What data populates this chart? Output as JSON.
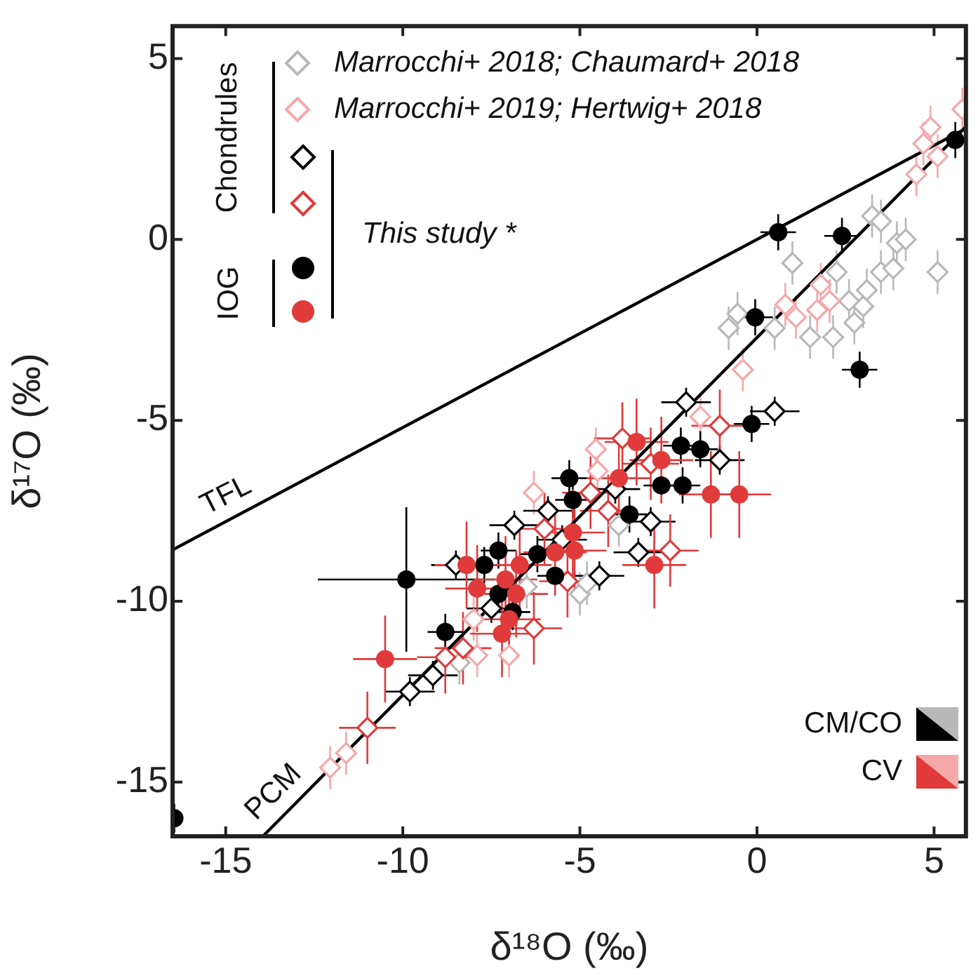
{
  "chart_data": {
    "type": "scatter",
    "xlabel": "δ¹⁸O (‰)",
    "ylabel": "δ¹⁷O (‰)",
    "xlim": [
      -16.5,
      5.9
    ],
    "ylim": [
      -16.5,
      5.9
    ],
    "xticks": [
      -15,
      -10,
      -5,
      0,
      5
    ],
    "yticks": [
      -15,
      -10,
      -5,
      0,
      5
    ],
    "grid": false,
    "legend": "top left",
    "annotations": [
      "Chondrules",
      "IOG",
      "This study *",
      "CM/CO",
      "CV",
      {
        "text": "TFL",
        "x": -14.7,
        "y": -7.64
      },
      {
        "text": "PCM",
        "x": -13.2,
        "y": -15.73
      }
    ],
    "series": [
      {
        "name": "Marrocchi+ 2018; Chaumard+ 2018",
        "color": "#b8b8b8",
        "marker": "diamond",
        "x": [
          3.25,
          3.5,
          1.0,
          3.95,
          4.2,
          3.5,
          3.85,
          5.1,
          -0.55,
          -0.8,
          0.5,
          1.5,
          2.15,
          2.75,
          3.0,
          2.6,
          2.25,
          3.1,
          -5.0,
          -4.8,
          -6.5,
          -8.4,
          -3.9
        ],
        "values": [
          0.65,
          0.5,
          -0.65,
          -0.1,
          0.0,
          -0.9,
          -0.8,
          -0.9,
          -2.05,
          -2.45,
          -2.45,
          -2.7,
          -2.7,
          -2.3,
          -1.85,
          -1.7,
          -0.9,
          -1.4,
          -9.8,
          -9.5,
          -9.6,
          -11.7,
          -7.9
        ],
        "errors": [
          0.6,
          0.6,
          0.6,
          0.6,
          0.6,
          0.6,
          0.6,
          0.6,
          0.6,
          0.6,
          0.6,
          0.6,
          0.6,
          0.6,
          0.6,
          0.6,
          0.6,
          0.6,
          0.6,
          0.6,
          0.6,
          0.6,
          0.6
        ]
      },
      {
        "name": "Marrocchi+ 2019; Hertwig+ 2018",
        "color": "#f5a8a8",
        "marker": "diamond",
        "x": [
          5.8,
          4.9,
          4.7,
          5.1,
          4.5,
          1.8,
          2.05,
          1.7,
          1.1,
          0.8,
          -0.4,
          -4.55,
          -1.6,
          -12.05,
          -11.6,
          -8.0,
          -7.9,
          -7.0,
          -6.3,
          -4.5
        ],
        "values": [
          3.6,
          3.1,
          2.65,
          2.3,
          1.8,
          -1.25,
          -1.7,
          -1.95,
          -2.15,
          -1.8,
          -3.6,
          -5.8,
          -4.9,
          -14.6,
          -14.2,
          -10.5,
          -11.5,
          -11.5,
          -7.0,
          -6.4
        ],
        "errors": [
          0.6,
          0.6,
          0.6,
          0.6,
          0.6,
          0.6,
          0.6,
          0.6,
          0.6,
          0.6,
          0.6,
          0.6,
          0.6,
          0.6,
          0.6,
          0.6,
          0.6,
          0.6,
          0.6,
          0.6
        ]
      },
      {
        "color": "#000000",
        "marker": "diamond",
        "x": [
          -2.0,
          0.5,
          -1.05,
          -3.0,
          -3.35,
          -4.45,
          -5.9,
          -6.85,
          -8.5,
          -7.5,
          -9.15,
          -9.8,
          -4.0,
          -5.5
        ],
        "values": [
          -4.5,
          -4.75,
          -6.1,
          -7.8,
          -8.65,
          -9.3,
          -7.5,
          -7.9,
          -9.0,
          -10.2,
          -12.05,
          -12.5,
          -6.9,
          -8.3
        ],
        "errors": [
          0.4,
          0.4,
          0.4,
          0.4,
          0.4,
          0.4,
          0.4,
          0.4,
          0.4,
          0.4,
          0.4,
          0.4,
          0.4,
          0.4
        ],
        "xerrors": [
          0.7,
          0.7,
          0.7,
          0.7,
          0.7,
          0.7,
          0.7,
          0.7,
          0.7,
          0.7,
          0.7,
          0.7,
          0.7,
          0.7
        ]
      },
      {
        "color": "#e03a3a",
        "marker": "diamond",
        "x": [
          -11.0,
          -8.8,
          -8.3,
          -6.3,
          -2.45,
          -5.35,
          -1.05,
          -4.7,
          -4.2,
          -3.0,
          -6.0,
          -3.8
        ],
        "values": [
          -13.5,
          -11.55,
          -11.3,
          -10.75,
          -8.6,
          -9.45,
          -5.15,
          -7.0,
          -7.5,
          -6.2,
          -8.0,
          -5.5
        ],
        "errors": [
          1.0,
          1.0,
          1.0,
          1.0,
          1.0,
          1.0,
          1.0,
          1.0,
          1.0,
          1.0,
          1.0,
          1.0
        ],
        "xerrors": [
          0.8,
          0.8,
          0.8,
          0.8,
          0.8,
          0.8,
          0.8,
          0.8,
          0.8,
          0.8,
          0.8,
          0.8
        ]
      },
      {
        "color": "#000000",
        "marker": "circle",
        "x": [
          -16.45,
          0.6,
          2.4,
          -0.05,
          2.9,
          5.6,
          -0.15,
          -1.6,
          -2.15,
          -2.1,
          -2.7,
          -3.6,
          -5.3,
          -5.2,
          -6.2,
          -5.7,
          -7.3,
          -7.7,
          -7.3,
          -6.9,
          -8.8,
          -9.9
        ],
        "values": [
          -16.0,
          0.2,
          0.1,
          -2.15,
          -3.6,
          2.75,
          -5.1,
          -5.8,
          -5.7,
          -6.8,
          -6.8,
          -7.6,
          -6.6,
          -7.2,
          -8.7,
          -9.3,
          -8.6,
          -9.0,
          -9.8,
          -10.3,
          -10.85,
          -9.4
        ],
        "errors": [
          0.4,
          0.5,
          0.5,
          0.5,
          0.5,
          0.5,
          0.5,
          0.5,
          0.5,
          0.5,
          null,
          0.5,
          0.5,
          0.5,
          0.5,
          null,
          0.5,
          0.5,
          0.5,
          0.5,
          0.5,
          2.0
        ],
        "xerrors": [
          null,
          0.5,
          0.5,
          0.5,
          0.5,
          0.3,
          0.5,
          0.5,
          0.5,
          0.5,
          0.5,
          0.5,
          0.5,
          0.5,
          0.5,
          0.5,
          0.5,
          0.5,
          null,
          0.5,
          0.5,
          2.5
        ]
      },
      {
        "color": "#e03a3a",
        "marker": "circle",
        "x": [
          -10.5,
          -8.2,
          -7.9,
          -7.1,
          -6.8,
          -6.7,
          -7.0,
          -7.2,
          -5.7,
          -5.2,
          -5.15,
          -3.9,
          -3.4,
          -2.7,
          -1.3,
          -0.5,
          -2.9
        ],
        "values": [
          -11.6,
          -9.0,
          -9.65,
          -9.4,
          -9.8,
          -9.0,
          -10.5,
          -10.9,
          -8.65,
          -8.1,
          -8.6,
          -6.6,
          -5.6,
          -6.1,
          -7.05,
          -7.05,
          -9.0
        ],
        "errors": [
          1.2,
          1.2,
          1.2,
          1.2,
          1.2,
          1.2,
          1.2,
          1.2,
          1.2,
          1.2,
          1.2,
          1.2,
          1.2,
          1.2,
          1.2,
          1.2,
          1.2
        ],
        "xerrors": [
          0.9,
          0.9,
          0.9,
          0.9,
          0.9,
          0.9,
          0.9,
          0.9,
          0.9,
          0.9,
          0.9,
          0.9,
          0.9,
          0.9,
          0.9,
          0.9,
          0.9
        ]
      },
      {
        "type": "line",
        "color": "#000000",
        "marker": "none",
        "line_style": "solid",
        "x": [
          -16.5,
          5.9
        ],
        "values": [
          -8.58,
          3.07
        ]
      },
      {
        "type": "line",
        "color": "#000000",
        "marker": "none",
        "line_style": "solid",
        "x": [
          -13.95,
          5.9
        ],
        "values": [
          -16.5,
          3.12
        ]
      }
    ]
  }
}
